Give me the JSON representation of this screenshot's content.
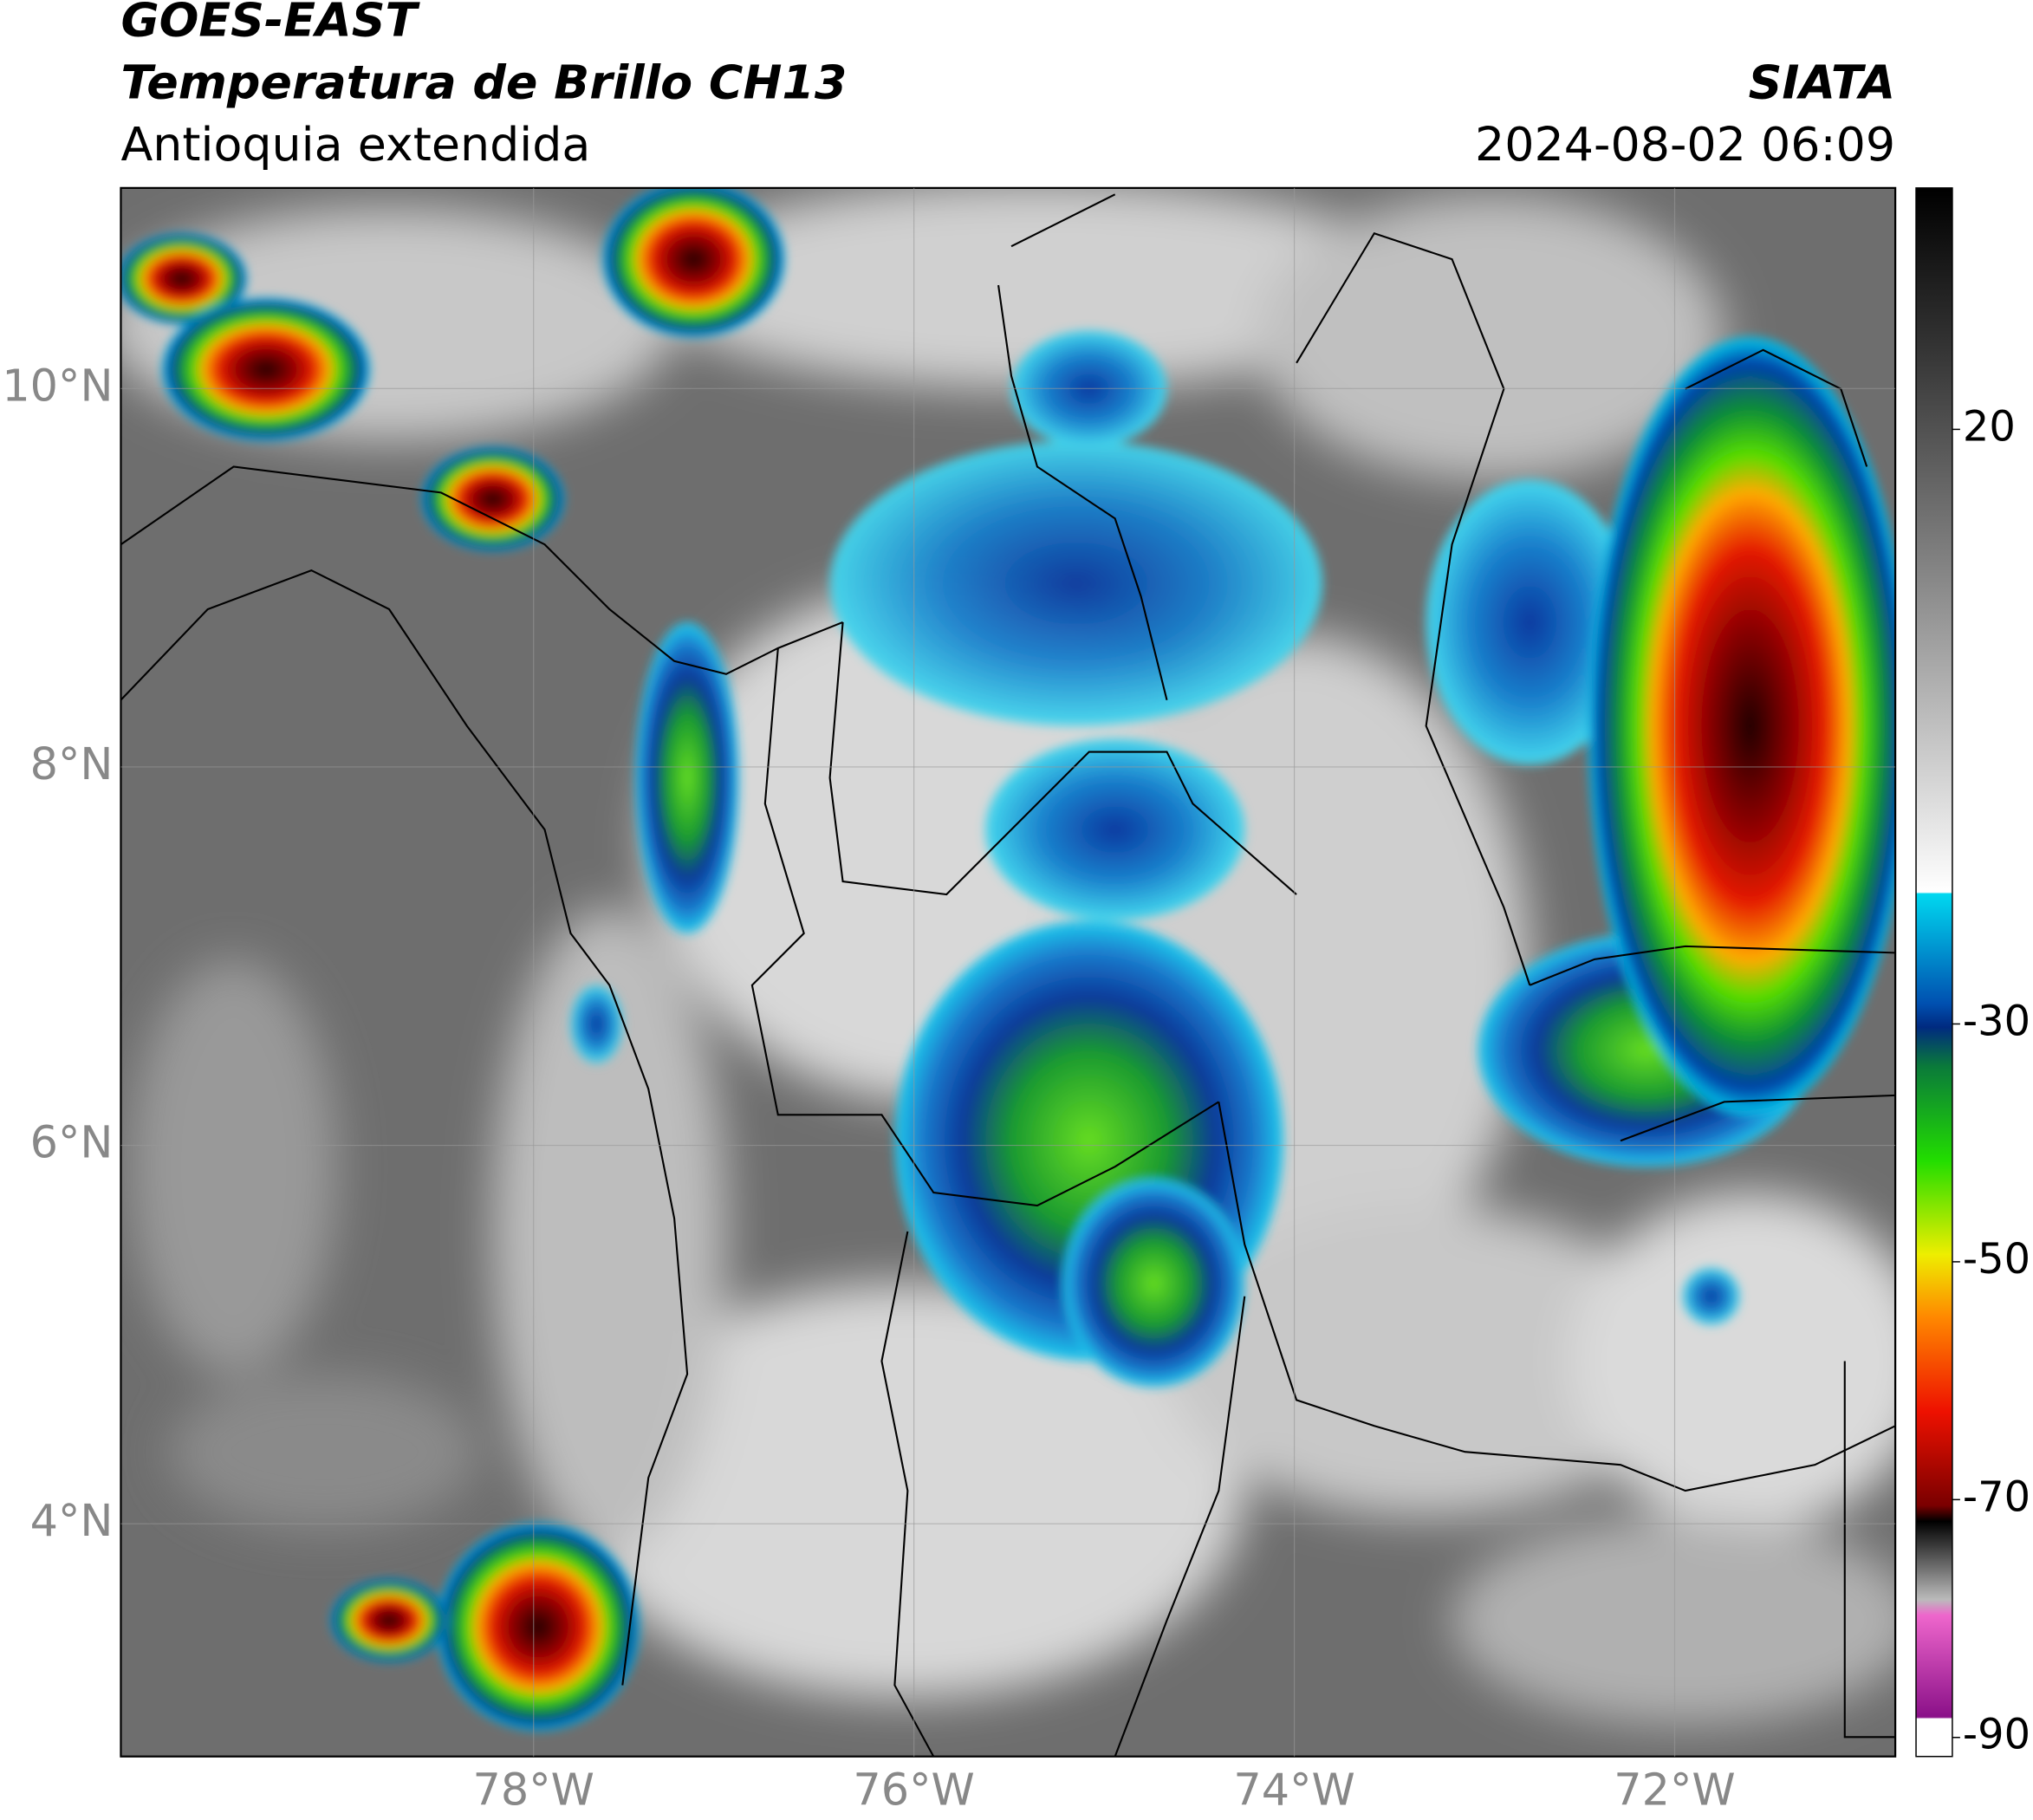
{
  "header": {
    "title": "GOES-EAST",
    "subtitle": "Temperatura de Brillo CH13",
    "region": "Antioquia extendida",
    "source": "SIATA",
    "datetime": "2024-08-02 06:09"
  },
  "map": {
    "lonlim": [
      -80.17,
      -70.84
    ],
    "latlim": [
      2.77,
      11.06
    ],
    "lat_ticks": [
      {
        "value": 10,
        "label": "10°N"
      },
      {
        "value": 8,
        "label": "8°N"
      },
      {
        "value": 6,
        "label": "6°N"
      },
      {
        "value": 4,
        "label": "4°N"
      }
    ],
    "lon_ticks": [
      {
        "value": -78,
        "label": "78°W"
      },
      {
        "value": -76,
        "label": "76°W"
      },
      {
        "value": -74,
        "label": "74°W"
      },
      {
        "value": -72,
        "label": "72°W"
      }
    ],
    "grid": true
  },
  "colorbar": {
    "lim": [
      -91.6,
      40.3
    ],
    "ticks": [
      20,
      -30,
      -50,
      -70,
      -90
    ]
  }
}
